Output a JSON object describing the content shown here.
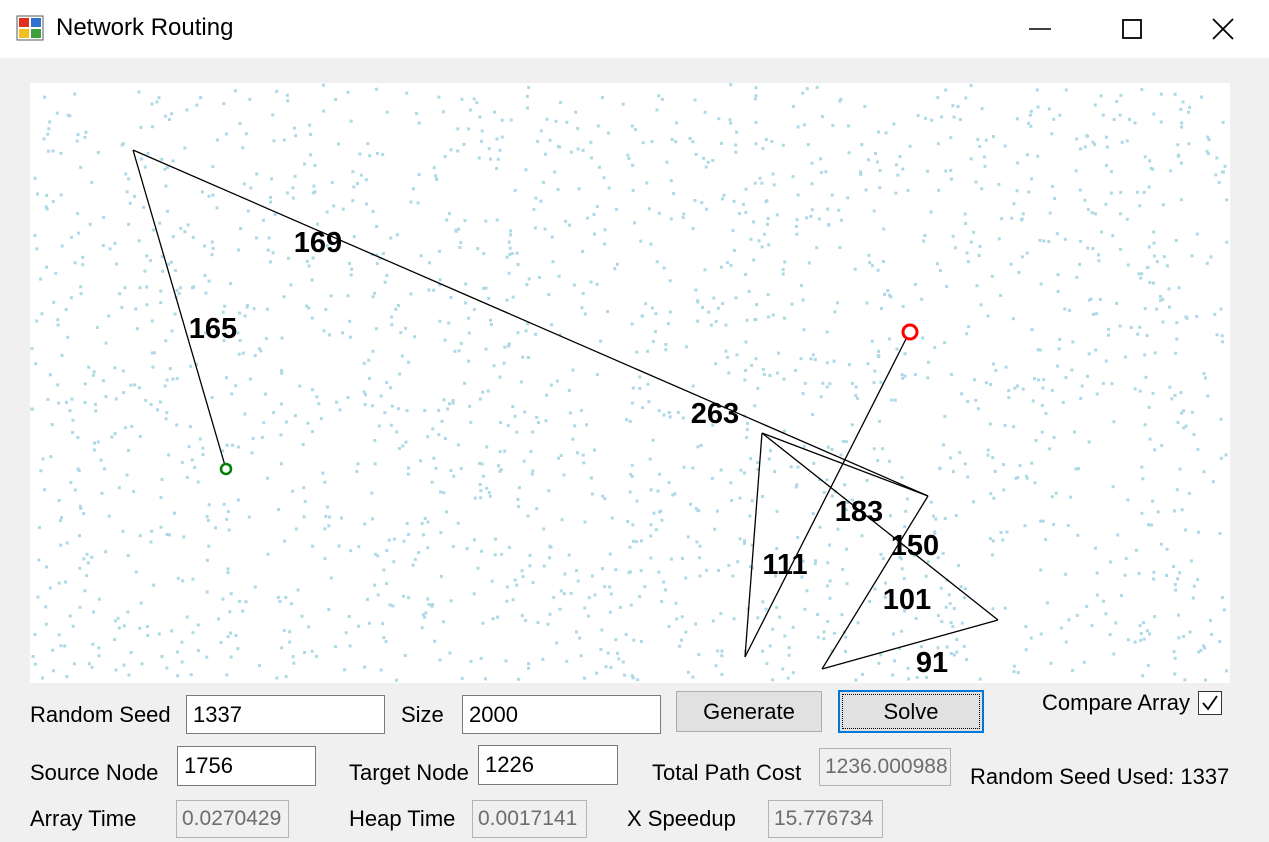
{
  "window": {
    "title": "Network Routing",
    "icon": "app-window-icon"
  },
  "window_buttons": [
    "minimize-icon",
    "maximize-icon",
    "close-icon"
  ],
  "graph": {
    "point_color": "#add8e6",
    "edge_color": "#000000",
    "source_color": "#008000",
    "target_color": "#ff0000",
    "edge_labels": [
      "169",
      "165",
      "263",
      "183",
      "150",
      "111",
      "101",
      "91"
    ]
  },
  "controls": {
    "random_seed_label": "Random Seed",
    "random_seed_value": "1337",
    "size_label": "Size",
    "size_value": "2000",
    "generate_label": "Generate",
    "solve_label": "Solve",
    "compare_array_label": "Compare Array",
    "compare_array_checked": true,
    "source_node_label": "Source Node",
    "source_node_value": "1756",
    "target_node_label": "Target Node",
    "target_node_value": "1226",
    "total_path_cost_label": "Total Path Cost",
    "total_path_cost_value": "1236.000988",
    "random_seed_used": "Random Seed Used: 1337",
    "array_time_label": "Array Time",
    "array_time_value": "0.0270429",
    "heap_time_label": "Heap Time",
    "heap_time_value": "0.0017141",
    "speedup_label": "X Speedup",
    "speedup_value": "15.776734"
  }
}
